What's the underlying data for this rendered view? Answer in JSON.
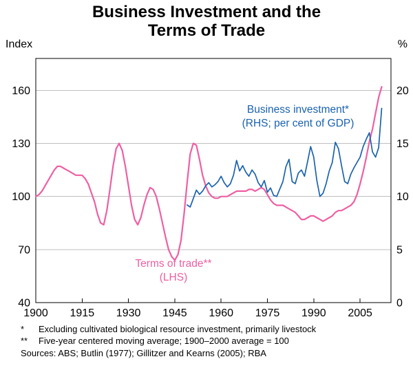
{
  "title": {
    "line1": "Business Investment and the",
    "line2": "Terms of Trade"
  },
  "axis_units": {
    "left": "Index",
    "right": "%"
  },
  "annotations": {
    "business": {
      "line1": "Business investment*",
      "line2": "(RHS; per cent of GDP)"
    },
    "terms": {
      "line1": "Terms of trade**",
      "line2": "(LHS)"
    }
  },
  "footnotes": [
    {
      "marker": "*",
      "text": "Excluding cultivated biological resource investment, primarily livestock"
    },
    {
      "marker": "**",
      "text": "Five-year centered moving average; 1900–2000 average = 100"
    }
  ],
  "sources": "Sources: ABS; Butlin (1977); Gillitzer and Kearns (2005); RBA",
  "colors": {
    "grid": "#bfbfbf",
    "frame": "#000000",
    "pink": "#ee5fa2",
    "blue": "#1a62ae"
  },
  "chart_data": {
    "type": "line",
    "title": "Business Investment and the Terms of Trade",
    "x_range": [
      1900,
      2015
    ],
    "x_ticks": [
      1900,
      1915,
      1930,
      1945,
      1960,
      1975,
      1990,
      2005
    ],
    "left_axis": {
      "label": "Index",
      "ticks": [
        40,
        70,
        100,
        130,
        160
      ],
      "range": [
        40,
        178
      ]
    },
    "right_axis": {
      "label": "%",
      "ticks": [
        0,
        5,
        10,
        15,
        20
      ],
      "range": [
        0,
        23
      ]
    },
    "grid": true,
    "legend_position": "in-plot annotations",
    "series": [
      {
        "name": "Terms of trade",
        "axis": "left",
        "units": "index, five-year centered moving average, 1900–2000 average = 100",
        "color": "pink",
        "start_year": 1900,
        "step": 1,
        "values": [
          100,
          101,
          103,
          106,
          109,
          112,
          115,
          117,
          117,
          116,
          115,
          114,
          113,
          112,
          112,
          112,
          110,
          107,
          102,
          97,
          90,
          85,
          84,
          92,
          104,
          117,
          127,
          130,
          126,
          117,
          106,
          95,
          87,
          84,
          88,
          95,
          101,
          105,
          104,
          100,
          93,
          85,
          77,
          70,
          66,
          64,
          67,
          75,
          90,
          108,
          124,
          130,
          129,
          121,
          112,
          106,
          102,
          100,
          99,
          99,
          100,
          100,
          100,
          101,
          102,
          103,
          103,
          103,
          103,
          104,
          104,
          103,
          104,
          105,
          104,
          101,
          98,
          96,
          95,
          95,
          95,
          94,
          93,
          92,
          91,
          89,
          87,
          87,
          88,
          89,
          89,
          88,
          87,
          86,
          87,
          88,
          89,
          91,
          92,
          92,
          93,
          94,
          95,
          97,
          101,
          107,
          114,
          122,
          131,
          138,
          147,
          156,
          162
        ]
      },
      {
        "name": "Business investment",
        "axis": "right",
        "units": "per cent of GDP",
        "color": "blue",
        "start_year": 1949,
        "step": 1,
        "values": [
          9.2,
          9.0,
          9.8,
          10.6,
          10.2,
          10.5,
          11.0,
          11.3,
          10.9,
          11.1,
          11.4,
          11.9,
          11.3,
          10.9,
          11.2,
          12.0,
          13.4,
          12.4,
          12.9,
          12.3,
          11.9,
          12.5,
          12.1,
          11.3,
          10.9,
          11.5,
          10.4,
          10.8,
          10.1,
          10.0,
          10.7,
          11.4,
          12.8,
          13.5,
          11.4,
          11.2,
          12.2,
          12.5,
          11.9,
          13.3,
          14.7,
          13.7,
          11.5,
          10.0,
          10.3,
          11.2,
          12.4,
          13.2,
          15.1,
          14.5,
          12.9,
          11.4,
          11.2,
          12.1,
          12.7,
          13.2,
          13.7,
          14.7,
          15.4,
          16.0,
          14.2,
          13.7,
          14.6,
          18.3
        ]
      }
    ]
  }
}
